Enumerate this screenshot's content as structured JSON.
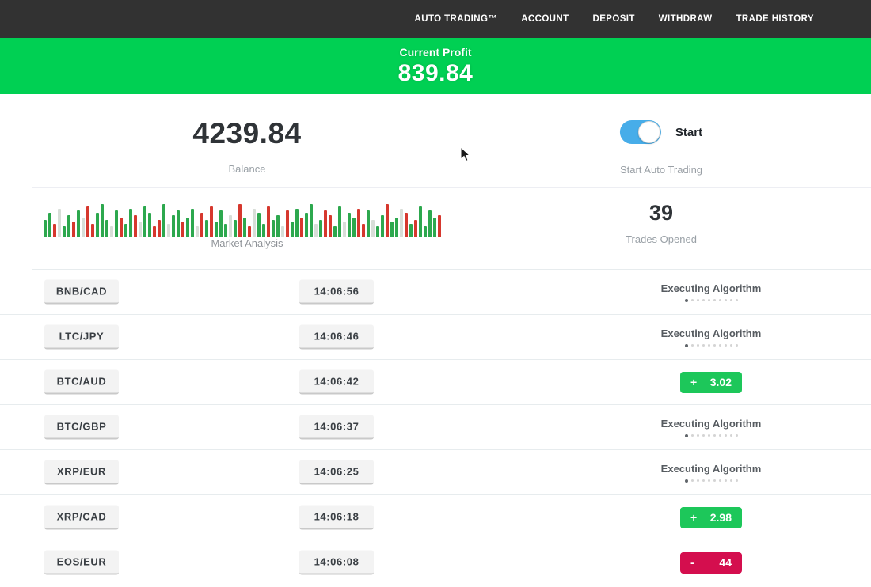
{
  "nav": {
    "items": [
      "AUTO TRADING™",
      "ACCOUNT",
      "DEPOSIT",
      "WITHDRAW",
      "TRADE HISTORY"
    ]
  },
  "banner": {
    "label": "Current Profit",
    "value": "839.84"
  },
  "stats": {
    "balance": {
      "value": "4239.84",
      "label": "Balance"
    },
    "auto_trading": {
      "toggle_label": "Start",
      "toggle_state": "on",
      "caption": "Start Auto Trading"
    },
    "market_analysis": {
      "label": "Market Analysis",
      "bars": {
        "heights": [
          16,
          22,
          12,
          26,
          10,
          20,
          14,
          24,
          18,
          28,
          12,
          22,
          30,
          16,
          10,
          24,
          18,
          12,
          26,
          20,
          14,
          28,
          22,
          10,
          16,
          30,
          12,
          20,
          24,
          14,
          18,
          26,
          10,
          22,
          16,
          28,
          14,
          24,
          12,
          20,
          16,
          30,
          18,
          10,
          26,
          22,
          12,
          28,
          16,
          20,
          10,
          24,
          14,
          26,
          18,
          22,
          30,
          12,
          16,
          24,
          20,
          10,
          28,
          14,
          22,
          18,
          26,
          12,
          24,
          16,
          10,
          20,
          30,
          14,
          18,
          26,
          22,
          12,
          16,
          28,
          10,
          24,
          18,
          20
        ],
        "colors": "ggrpggrgprrgggpgrggrpggrrgpggrggprgrgggpgrgrpggrggprggrggpgrrggpggrrgpggrggprgrggggr"
      }
    },
    "trades_opened": {
      "value": "39",
      "label": "Trades Opened"
    }
  },
  "trades": {
    "executing_label": "Executing Algorithm",
    "dot_count": 10,
    "rows": [
      {
        "pair": "BNB/CAD",
        "time": "14:06:56",
        "status": "executing",
        "sign": "",
        "value": ""
      },
      {
        "pair": "LTC/JPY",
        "time": "14:06:46",
        "status": "executing",
        "sign": "",
        "value": ""
      },
      {
        "pair": "BTC/AUD",
        "time": "14:06:42",
        "status": "profit",
        "sign": "+",
        "value": "3.02"
      },
      {
        "pair": "BTC/GBP",
        "time": "14:06:37",
        "status": "executing",
        "sign": "",
        "value": ""
      },
      {
        "pair": "XRP/EUR",
        "time": "14:06:25",
        "status": "executing",
        "sign": "",
        "value": ""
      },
      {
        "pair": "XRP/CAD",
        "time": "14:06:18",
        "status": "profit",
        "sign": "+",
        "value": "2.98"
      },
      {
        "pair": "EOS/EUR",
        "time": "14:06:08",
        "status": "loss",
        "sign": "-",
        "value": "44"
      }
    ]
  },
  "colors": {
    "topbar": "#323232",
    "banner_bg": "#00d053",
    "toggle_on": "#47ade9",
    "profit_badge": "#1dc75a",
    "loss_badge": "#d40e4e",
    "bar_green": "#2da84e",
    "bar_red": "#d6382e",
    "bar_pale": "#d8ded8"
  }
}
